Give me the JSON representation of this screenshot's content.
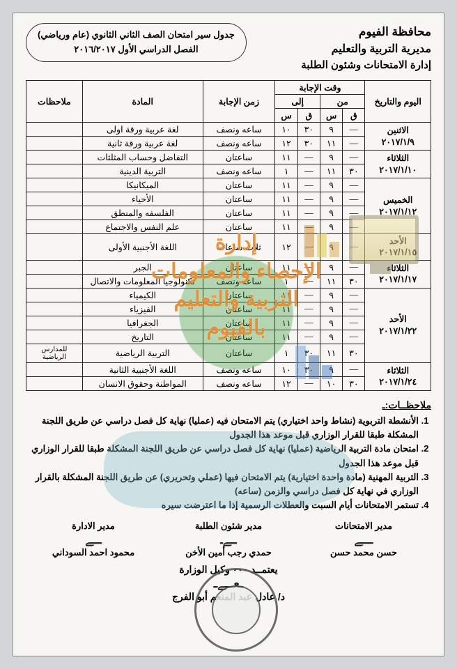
{
  "header": {
    "gov": "محافظة الفيوم",
    "dir": "مديرية التربية والتعليم",
    "dept": "إدارة الامتحانات وشئون الطلبة",
    "box_l1": "جدول سير امتحان الصف الثاني الثانوي (عام ورياضي)",
    "box_l2": "الفصل الدراسي الأول ٢٠١٦/٢٠١٧"
  },
  "cols": {
    "day": "اليوم والتاريخ",
    "time": "وقت الإجابة",
    "from": "من",
    "to": "إلى",
    "q": "ق",
    "s": "س",
    "dur": "زمن الإجابة",
    "subj": "المادة",
    "notes": "ملاحظات"
  },
  "rows": [
    {
      "day": "الاثنين",
      "date": "٢٠١٧/١/٩",
      "span": 2,
      "cells": [
        {
          "fq": "—",
          "fs": "٩",
          "tq": "٣٠",
          "ts": "١٠",
          "dur": "ساعه ونصف",
          "subj": "لغة عربية ورقة اولى",
          "note": ""
        },
        {
          "fq": "—",
          "fs": "١١",
          "tq": "٣٠",
          "ts": "١٢",
          "dur": "ساعه ونصف",
          "subj": "لغة عربية ورقة ثانية",
          "note": ""
        }
      ]
    },
    {
      "day": "الثلاثاء",
      "date": "٢٠١٧/١/١٠",
      "span": 2,
      "cells": [
        {
          "fq": "—",
          "fs": "٩",
          "tq": "—",
          "ts": "١١",
          "dur": "ساعتان",
          "subj": "التفاضل وحساب المثلثات",
          "note": ""
        },
        {
          "fq": "٣٠",
          "fs": "١١",
          "tq": "—",
          "ts": "١",
          "dur": "ساعه ونصف",
          "subj": "التربية الدينية",
          "note": ""
        }
      ]
    },
    {
      "day": "الخميس",
      "date": "٢٠١٧/١/١٢",
      "span": 4,
      "cells": [
        {
          "fq": "—",
          "fs": "٩",
          "tq": "—",
          "ts": "١١",
          "dur": "ساعتان",
          "subj": "الميكانيكا",
          "note": ""
        },
        {
          "fq": "—",
          "fs": "٩",
          "tq": "—",
          "ts": "١١",
          "dur": "ساعتان",
          "subj": "الأحياء",
          "note": ""
        },
        {
          "fq": "—",
          "fs": "٩",
          "tq": "—",
          "ts": "١١",
          "dur": "ساعتان",
          "subj": "الفلسفه والمنطق",
          "note": ""
        },
        {
          "fq": "—",
          "fs": "٩",
          "tq": "—",
          "ts": "١١",
          "dur": "ساعتان",
          "subj": "علم النفس والاجتماع",
          "note": ""
        }
      ]
    },
    {
      "day": "الأحد",
      "date": "٢٠١٧/١/١٥",
      "span": 1,
      "cells": [
        {
          "fq": "—",
          "fs": "٩",
          "tq": "—",
          "ts": "١٢",
          "dur": "ثلاث ساعات",
          "subj": "اللغة الأجنبية الأولى",
          "note": ""
        }
      ]
    },
    {
      "day": "الثلاثاء",
      "date": "٢٠١٧/١/١٧",
      "span": 2,
      "cells": [
        {
          "fq": "—",
          "fs": "٩",
          "tq": "—",
          "ts": "١١",
          "dur": "ساعتان",
          "subj": "الجبر",
          "note": ""
        },
        {
          "fq": "٣٠",
          "fs": "١١",
          "tq": "—",
          "ts": "١",
          "dur": "ساعه ونصف",
          "subj": "تكنولوجيا المعلومات والاتصال",
          "note": ""
        }
      ]
    },
    {
      "day": "الأحد",
      "date": "٢٠١٧/١/٢٢",
      "span": 5,
      "cells": [
        {
          "fq": "—",
          "fs": "٩",
          "tq": "—",
          "ts": "١١",
          "dur": "ساعتان",
          "subj": "الكيمياء",
          "note": ""
        },
        {
          "fq": "—",
          "fs": "٩",
          "tq": "—",
          "ts": "١١",
          "dur": "ساعتان",
          "subj": "الفيزياء",
          "note": ""
        },
        {
          "fq": "—",
          "fs": "٩",
          "tq": "—",
          "ts": "١١",
          "dur": "ساعتان",
          "subj": "الجغرافيا",
          "note": ""
        },
        {
          "fq": "—",
          "fs": "٩",
          "tq": "—",
          "ts": "١١",
          "dur": "ساعتان",
          "subj": "التاريخ",
          "note": ""
        },
        {
          "fq": "٣٠",
          "fs": "١١",
          "tq": "٣٠",
          "ts": "١",
          "dur": "ساعتان",
          "subj": "التربية الرياضية",
          "note": "للمدارس الرياضية"
        }
      ]
    },
    {
      "day": "الثلاثاء",
      "date": "٢٠١٧/١/٢٤",
      "span": 2,
      "cells": [
        {
          "fq": "—",
          "fs": "٩",
          "tq": "٣٠",
          "ts": "١٠",
          "dur": "ساعه ونصف",
          "subj": "اللغة الأجنبية الثانية",
          "note": ""
        },
        {
          "fq": "٣٠",
          "fs": "١٠",
          "tq": "—",
          "ts": "١٢",
          "dur": "ساعه ونصف",
          "subj": "المواطنة وحقوق الانسان",
          "note": ""
        }
      ]
    }
  ],
  "notes": {
    "title": "ملاحظــات:ـ",
    "items": [
      "الأنشطة التربوية (نشاط واحد اختياري) يتم الامتحان فيه (عمليا) نهاية كل فصل دراسي عن طريق اللجنة المشكلة طبقا للقرار الوزاري قبل موعد هذا الجدول",
      "امتحان مادة التربية الرياضية (عمليا) نهاية كل فصل دراسي عن طريق اللجنة المشكلة طبقا للقرار الوزاري قبل موعد هذا الجدول",
      "التربية المهنية (مادة واحدة اختيارية) يتم الامتحان فيها (عملي وتحريري) عن طريق اللجنة المشكلة بالقرار الوزاري في نهاية كل فصل دراسي والزمن (ساعه)",
      "تستمر الامتحانات أيام السبت والعطلات الرسمية إذا ما اعترضت سيره"
    ]
  },
  "sign": {
    "t1": "مدير الامتحانات",
    "n1": "حسن محمد حسن",
    "t2": "مدير شئون الطلبة",
    "n2": "حمدي رجب أمين الأخن",
    "t3": "مدير الادارة",
    "n3": "محمود احمد السوداني",
    "approve_t": "يعتمــد ٠٠٠ وكيل الوزارة",
    "approve_n": "د/ عادل عبد المنعم أبو الفرج"
  },
  "watermark": {
    "l1": "إدارة",
    "l2": "الإحصاء والمعلومات",
    "l3": "التربية والتعليم",
    "l4": "بالفيوم"
  }
}
